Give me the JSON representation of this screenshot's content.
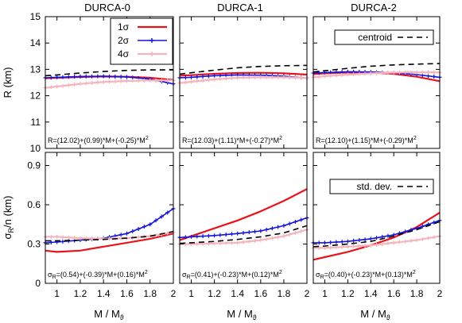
{
  "columns": [
    "DURCA-0",
    "DURCA-1",
    "DURCA-2"
  ],
  "x_axis": {
    "label": "M / M",
    "sub": "ϑ",
    "ticks": [
      "1",
      "1.2",
      "1.4",
      "1.6",
      "1.8",
      "2"
    ]
  },
  "rows": [
    {
      "ylabel": "R  (km)",
      "ticks": [
        "10",
        "11",
        "12",
        "13",
        "14",
        "15"
      ]
    },
    {
      "ylabel": "σ",
      "ylabel_sub": "R",
      "ylabel_rest": "/n  (km)",
      "ticks": [
        "0",
        "0.3",
        "0.6",
        "0.9"
      ]
    }
  ],
  "legend": [
    {
      "label": "1σ",
      "color": "#e8141c"
    },
    {
      "label": "2σ",
      "color": "#1414dc"
    },
    {
      "label": "4σ",
      "color": "#f5b4bc"
    }
  ],
  "centroid_label": "centroid",
  "stddev_label": "std. dev.",
  "formulas": {
    "R": [
      "R=(12.02)+(0.99)*M+(-0.25)*M",
      "R=(12.03)+(1.11)*M+(-0.27)*M",
      "R=(12.10)+(1.15)*M+(-0.29)*M"
    ],
    "R_sq": "2",
    "S_prefix": "σ",
    "S_sub": "R",
    "S": [
      "=(0.54)+(-0.39)*M+(0.16)*M",
      "=(0.41)+(-0.23)*M+(0.12)*M",
      "=(0.40)+(-0.23)*M+(0.13)*M"
    ],
    "S_sq": "2"
  },
  "chart_data": [
    {
      "type": "line",
      "panel": "DURCA-0 R",
      "xlim": [
        0.9,
        2.0
      ],
      "ylim": [
        10,
        15
      ],
      "series": [
        {
          "name": "1σ",
          "x": [
            0.9,
            1.0,
            1.2,
            1.4,
            1.6,
            1.8,
            2.0
          ],
          "y": [
            12.66,
            12.68,
            12.71,
            12.73,
            12.72,
            12.68,
            12.6
          ]
        },
        {
          "name": "2σ",
          "x": [
            0.9,
            1.0,
            1.2,
            1.4,
            1.6,
            1.8,
            2.0
          ],
          "y": [
            12.68,
            12.7,
            12.73,
            12.74,
            12.71,
            12.63,
            12.45
          ]
        },
        {
          "name": "4σ",
          "x": [
            0.9,
            1.0,
            1.2,
            1.4,
            1.6,
            1.8,
            2.0
          ],
          "y": [
            12.3,
            12.35,
            12.45,
            12.52,
            12.56,
            12.58,
            12.58
          ]
        },
        {
          "name": "centroid",
          "x": [
            0.9,
            1.0,
            1.2,
            1.4,
            1.6,
            1.8,
            2.0
          ],
          "y": [
            12.76,
            12.79,
            12.86,
            12.92,
            12.96,
            12.98,
            12.98
          ]
        }
      ]
    },
    {
      "type": "line",
      "panel": "DURCA-1 R",
      "xlim": [
        0.9,
        2.0
      ],
      "ylim": [
        10,
        15
      ],
      "series": [
        {
          "name": "1σ",
          "x": [
            0.9,
            1.0,
            1.2,
            1.4,
            1.6,
            1.8,
            2.0
          ],
          "y": [
            12.76,
            12.78,
            12.83,
            12.86,
            12.87,
            12.85,
            12.8
          ]
        },
        {
          "name": "2σ",
          "x": [
            0.9,
            1.0,
            1.2,
            1.4,
            1.6,
            1.8,
            2.0
          ],
          "y": [
            12.68,
            12.7,
            12.76,
            12.79,
            12.78,
            12.74,
            12.67
          ]
        },
        {
          "name": "4σ",
          "x": [
            0.9,
            1.0,
            1.2,
            1.4,
            1.6,
            1.8,
            2.0
          ],
          "y": [
            12.48,
            12.53,
            12.62,
            12.68,
            12.7,
            12.7,
            12.67
          ]
        },
        {
          "name": "centroid",
          "x": [
            0.9,
            1.0,
            1.2,
            1.4,
            1.6,
            1.8,
            2.0
          ],
          "y": [
            12.82,
            12.87,
            12.97,
            13.06,
            13.11,
            13.14,
            13.15
          ]
        }
      ]
    },
    {
      "type": "line",
      "panel": "DURCA-2 R",
      "xlim": [
        0.9,
        2.0
      ],
      "ylim": [
        10,
        15
      ],
      "series": [
        {
          "name": "1σ",
          "x": [
            0.9,
            1.0,
            1.2,
            1.4,
            1.6,
            1.8,
            2.0
          ],
          "y": [
            12.82,
            12.85,
            12.88,
            12.88,
            12.83,
            12.72,
            12.55
          ]
        },
        {
          "name": "2σ",
          "x": [
            0.9,
            1.0,
            1.2,
            1.4,
            1.6,
            1.8,
            2.0
          ],
          "y": [
            12.86,
            12.88,
            12.91,
            12.9,
            12.87,
            12.8,
            12.7
          ]
        },
        {
          "name": "4σ",
          "x": [
            0.9,
            1.0,
            1.2,
            1.4,
            1.6,
            1.8,
            2.0
          ],
          "y": [
            12.7,
            12.74,
            12.8,
            12.85,
            12.88,
            12.89,
            12.88
          ]
        },
        {
          "name": "centroid",
          "x": [
            0.9,
            1.0,
            1.2,
            1.4,
            1.6,
            1.8,
            2.0
          ],
          "y": [
            12.9,
            12.95,
            13.04,
            13.12,
            13.17,
            13.2,
            13.22
          ]
        }
      ]
    },
    {
      "type": "line",
      "panel": "DURCA-0 sigma",
      "xlim": [
        0.9,
        2.0
      ],
      "ylim": [
        0,
        1.0
      ],
      "series": [
        {
          "name": "1σ",
          "x": [
            0.9,
            1.0,
            1.2,
            1.4,
            1.6,
            1.8,
            2.0
          ],
          "y": [
            0.25,
            0.24,
            0.25,
            0.28,
            0.31,
            0.34,
            0.38
          ]
        },
        {
          "name": "2σ",
          "x": [
            0.9,
            1.0,
            1.2,
            1.4,
            1.6,
            1.8,
            2.0
          ],
          "y": [
            0.31,
            0.315,
            0.33,
            0.345,
            0.38,
            0.45,
            0.57
          ]
        },
        {
          "name": "4σ",
          "x": [
            0.9,
            1.0,
            1.2,
            1.4,
            1.6,
            1.8,
            2.0
          ],
          "y": [
            0.355,
            0.355,
            0.345,
            0.34,
            0.345,
            0.36,
            0.39
          ]
        },
        {
          "name": "std. dev.",
          "x": [
            0.9,
            1.0,
            1.2,
            1.4,
            1.6,
            1.8,
            2.0
          ],
          "y": [
            0.325,
            0.325,
            0.33,
            0.335,
            0.345,
            0.36,
            0.395
          ]
        }
      ]
    },
    {
      "type": "line",
      "panel": "DURCA-1 sigma",
      "xlim": [
        0.9,
        2.0
      ],
      "ylim": [
        0,
        1.0
      ],
      "series": [
        {
          "name": "1σ",
          "x": [
            0.9,
            1.0,
            1.2,
            1.4,
            1.6,
            1.8,
            2.0
          ],
          "y": [
            0.33,
            0.36,
            0.42,
            0.48,
            0.55,
            0.63,
            0.72
          ]
        },
        {
          "name": "2σ",
          "x": [
            0.9,
            1.0,
            1.2,
            1.4,
            1.6,
            1.8,
            2.0
          ],
          "y": [
            0.35,
            0.355,
            0.365,
            0.38,
            0.4,
            0.44,
            0.5
          ]
        },
        {
          "name": "4σ",
          "x": [
            0.9,
            1.0,
            1.2,
            1.4,
            1.6,
            1.8,
            2.0
          ],
          "y": [
            0.3,
            0.3,
            0.305,
            0.31,
            0.33,
            0.36,
            0.41
          ]
        },
        {
          "name": "std. dev.",
          "x": [
            0.9,
            1.0,
            1.2,
            1.4,
            1.6,
            1.8,
            2.0
          ],
          "y": [
            0.305,
            0.31,
            0.32,
            0.335,
            0.355,
            0.385,
            0.44
          ]
        }
      ]
    },
    {
      "type": "line",
      "panel": "DURCA-2 sigma",
      "xlim": [
        0.9,
        2.0
      ],
      "ylim": [
        0,
        1.0
      ],
      "series": [
        {
          "name": "1σ",
          "x": [
            0.9,
            1.0,
            1.2,
            1.4,
            1.6,
            1.8,
            2.0
          ],
          "y": [
            0.18,
            0.2,
            0.24,
            0.29,
            0.35,
            0.43,
            0.54
          ]
        },
        {
          "name": "2σ",
          "x": [
            0.9,
            1.0,
            1.2,
            1.4,
            1.6,
            1.8,
            2.0
          ],
          "y": [
            0.31,
            0.31,
            0.32,
            0.34,
            0.37,
            0.42,
            0.48
          ]
        },
        {
          "name": "4σ",
          "x": [
            0.9,
            1.0,
            1.2,
            1.4,
            1.6,
            1.8,
            2.0
          ],
          "y": [
            0.27,
            0.27,
            0.28,
            0.29,
            0.31,
            0.33,
            0.36
          ]
        },
        {
          "name": "std. dev.",
          "x": [
            0.9,
            1.0,
            1.2,
            1.4,
            1.6,
            1.8,
            2.0
          ],
          "y": [
            0.28,
            0.285,
            0.3,
            0.32,
            0.36,
            0.41,
            0.47
          ]
        }
      ]
    }
  ]
}
